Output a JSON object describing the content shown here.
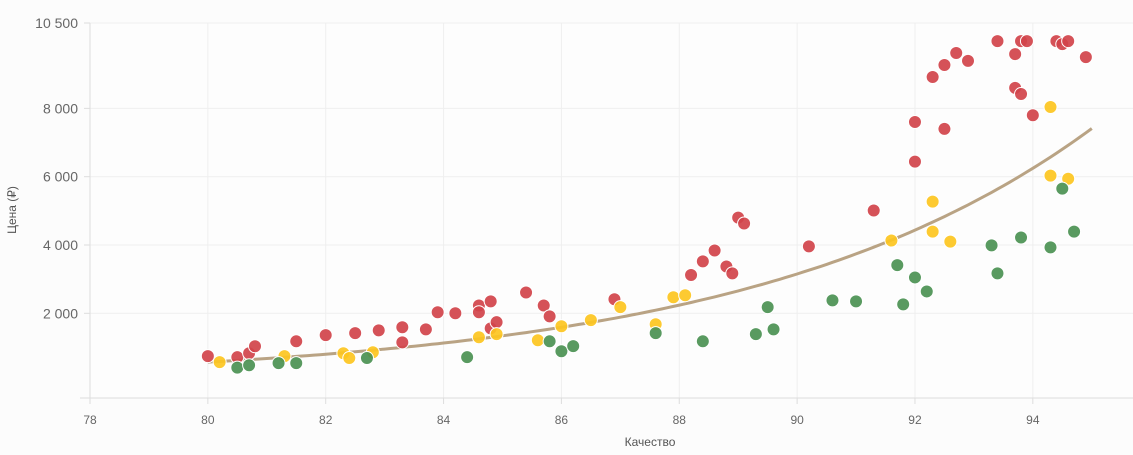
{
  "chart_data": {
    "type": "scatter",
    "xlabel": "Качество",
    "ylabel": "Цена (₽)",
    "xlim": [
      78,
      95.7
    ],
    "ylim": [
      -480,
      10500
    ],
    "x_ticks": [
      78,
      80,
      82,
      84,
      86,
      88,
      90,
      92,
      94
    ],
    "x_tick_labels": [
      "78",
      "80",
      "82",
      "84",
      "86",
      "88",
      "90",
      "92",
      "94"
    ],
    "y_ticks": [
      2000,
      4000,
      6000,
      8000,
      10500
    ],
    "y_tick_labels": [
      "2 000",
      "4 000",
      "6 000",
      "8 000",
      "10 500"
    ],
    "grid": true,
    "colors": {
      "red": "#d1434a",
      "yellow": "#fdc520",
      "green": "#4b9153",
      "trend": "#b9a384"
    },
    "series": [
      {
        "name": "red",
        "color": "#d1434a",
        "points": [
          [
            80.0,
            745
          ],
          [
            80.5,
            715
          ],
          [
            80.7,
            830
          ],
          [
            80.8,
            1035
          ],
          [
            81.5,
            1180
          ],
          [
            82.0,
            1360
          ],
          [
            82.5,
            1420
          ],
          [
            82.9,
            1500
          ],
          [
            83.3,
            1590
          ],
          [
            83.3,
            1150
          ],
          [
            83.7,
            1530
          ],
          [
            83.9,
            2030
          ],
          [
            84.2,
            2000
          ],
          [
            84.6,
            2230
          ],
          [
            84.6,
            2030
          ],
          [
            84.8,
            2350
          ],
          [
            84.8,
            1560
          ],
          [
            84.9,
            1740
          ],
          [
            85.4,
            2610
          ],
          [
            85.7,
            2230
          ],
          [
            85.8,
            1910
          ],
          [
            86.9,
            2410
          ],
          [
            88.2,
            3120
          ],
          [
            88.4,
            3520
          ],
          [
            88.6,
            3840
          ],
          [
            88.8,
            3370
          ],
          [
            88.9,
            3170
          ],
          [
            89.0,
            4800
          ],
          [
            89.1,
            4630
          ],
          [
            90.2,
            3960
          ],
          [
            91.3,
            5010
          ],
          [
            92.0,
            6440
          ],
          [
            92.0,
            7600
          ],
          [
            92.3,
            8920
          ],
          [
            92.5,
            9270
          ],
          [
            92.7,
            9620
          ],
          [
            92.9,
            9390
          ],
          [
            92.5,
            7400
          ],
          [
            93.4,
            9970
          ],
          [
            93.7,
            9590
          ],
          [
            93.8,
            9970
          ],
          [
            93.9,
            9970
          ],
          [
            93.7,
            8600
          ],
          [
            93.8,
            8420
          ],
          [
            94.0,
            7800
          ],
          [
            94.4,
            9970
          ],
          [
            94.5,
            9880
          ],
          [
            94.6,
            9970
          ],
          [
            94.9,
            9500
          ]
        ]
      },
      {
        "name": "yellow",
        "color": "#fdc520",
        "points": [
          [
            80.2,
            570
          ],
          [
            81.3,
            745
          ],
          [
            82.3,
            830
          ],
          [
            82.4,
            690
          ],
          [
            82.8,
            860
          ],
          [
            84.6,
            1300
          ],
          [
            84.9,
            1390
          ],
          [
            85.6,
            1210
          ],
          [
            86.0,
            1620
          ],
          [
            86.5,
            1800
          ],
          [
            87.0,
            2180
          ],
          [
            87.6,
            1680
          ],
          [
            87.9,
            2470
          ],
          [
            88.1,
            2530
          ],
          [
            91.6,
            4130
          ],
          [
            92.3,
            5270
          ],
          [
            92.3,
            4390
          ],
          [
            92.6,
            4100
          ],
          [
            94.3,
            8040
          ],
          [
            94.3,
            6030
          ],
          [
            94.6,
            5940
          ]
        ]
      },
      {
        "name": "green",
        "color": "#4b9153",
        "points": [
          [
            80.5,
            410
          ],
          [
            80.7,
            480
          ],
          [
            81.2,
            540
          ],
          [
            81.5,
            540
          ],
          [
            82.7,
            690
          ],
          [
            84.4,
            715
          ],
          [
            85.8,
            1180
          ],
          [
            86.0,
            890
          ],
          [
            86.2,
            1040
          ],
          [
            87.6,
            1420
          ],
          [
            88.4,
            1180
          ],
          [
            89.3,
            1390
          ],
          [
            89.5,
            2180
          ],
          [
            89.6,
            1530
          ],
          [
            90.6,
            2380
          ],
          [
            91.0,
            2350
          ],
          [
            91.7,
            3410
          ],
          [
            91.8,
            2260
          ],
          [
            92.0,
            3050
          ],
          [
            92.2,
            2640
          ],
          [
            93.3,
            3990
          ],
          [
            93.4,
            3170
          ],
          [
            93.8,
            4220
          ],
          [
            94.3,
            3930
          ],
          [
            94.5,
            5650
          ],
          [
            94.7,
            4390
          ]
        ]
      }
    ],
    "trendline": {
      "type": "exponential",
      "a": 570,
      "b": 0.171,
      "x0": 80,
      "x_range": [
        80,
        95
      ]
    }
  }
}
